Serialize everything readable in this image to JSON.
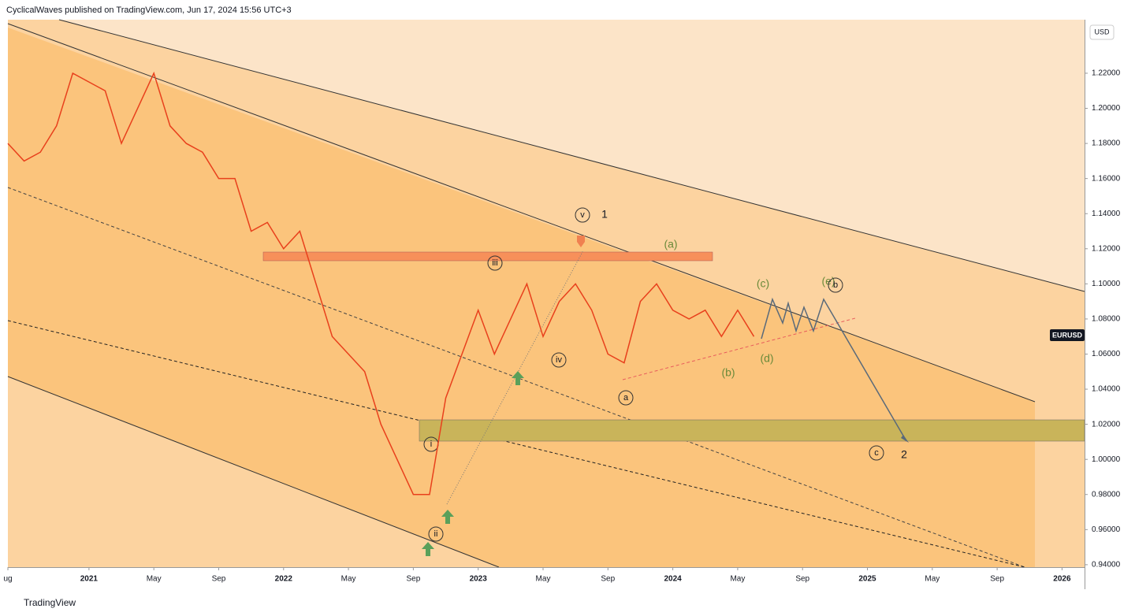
{
  "header": {
    "byline": "CyclicalWaves published on TradingView.com, Jun 17, 2024 15:56 UTC+3",
    "footer": "TradingView"
  },
  "chart_data": {
    "type": "line",
    "symbol": "EURUSD",
    "currency": "USD",
    "x": [
      "2020-08",
      "2020-09",
      "2020-10",
      "2020-11",
      "2020-12",
      "2021-01",
      "2021-02",
      "2021-03",
      "2021-04",
      "2021-05",
      "2021-06",
      "2021-07",
      "2021-08",
      "2021-09",
      "2021-10",
      "2021-11",
      "2021-12",
      "2022-01",
      "2022-02",
      "2022-03",
      "2022-04",
      "2022-05",
      "2022-06",
      "2022-07",
      "2022-08",
      "2022-09",
      "2022-10",
      "2022-11",
      "2022-12",
      "2023-01",
      "2023-02",
      "2023-03",
      "2023-04",
      "2023-05",
      "2023-06",
      "2023-07",
      "2023-08",
      "2023-09",
      "2023-10",
      "2023-11",
      "2023-12",
      "2024-01",
      "2024-02",
      "2024-03",
      "2024-04",
      "2024-05",
      "2024-06"
    ],
    "series": [
      {
        "name": "EURUSD",
        "color": "#e8401c",
        "values": [
          1.18,
          1.17,
          1.175,
          1.19,
          1.22,
          1.215,
          1.21,
          1.18,
          1.2,
          1.22,
          1.19,
          1.18,
          1.175,
          1.16,
          1.16,
          1.13,
          1.135,
          1.12,
          1.13,
          1.1,
          1.07,
          1.06,
          1.05,
          1.02,
          1.0,
          0.98,
          0.98,
          1.035,
          1.06,
          1.085,
          1.06,
          1.08,
          1.1,
          1.07,
          1.09,
          1.1,
          1.085,
          1.06,
          1.055,
          1.09,
          1.1,
          1.085,
          1.08,
          1.085,
          1.07,
          1.085,
          1.07
        ]
      }
    ],
    "xlim": [
      "2020-08",
      "2026-02"
    ],
    "xticks": [
      {
        "value": "2020-08",
        "label": "ug"
      },
      {
        "value": "2021-01",
        "label": "2021"
      },
      {
        "value": "2021-05",
        "label": "May"
      },
      {
        "value": "2021-09",
        "label": "Sep"
      },
      {
        "value": "2022-01",
        "label": "2022"
      },
      {
        "value": "2022-05",
        "label": "May"
      },
      {
        "value": "2022-09",
        "label": "Sep"
      },
      {
        "value": "2023-01",
        "label": "2023"
      },
      {
        "value": "2023-05",
        "label": "May"
      },
      {
        "value": "2023-09",
        "label": "Sep"
      },
      {
        "value": "2024-01",
        "label": "2024"
      },
      {
        "value": "2024-05",
        "label": "May"
      },
      {
        "value": "2024-09",
        "label": "Sep"
      },
      {
        "value": "2025-01",
        "label": "2025"
      },
      {
        "value": "2025-05",
        "label": "May"
      },
      {
        "value": "2025-09",
        "label": "Sep"
      },
      {
        "value": "2026-01",
        "label": "2026"
      }
    ],
    "ylim": [
      0.9386,
      1.2505
    ],
    "yticks": [
      {
        "value": 0.94,
        "label": "0.94000"
      },
      {
        "value": 0.96,
        "label": "0.96000"
      },
      {
        "value": 0.98,
        "label": "0.98000"
      },
      {
        "value": 1.0,
        "label": "1.00000"
      },
      {
        "value": 1.02,
        "label": "1.02000"
      },
      {
        "value": 1.04,
        "label": "1.04000"
      },
      {
        "value": 1.06,
        "label": "1.06000"
      },
      {
        "value": 1.08,
        "label": "1.08000"
      },
      {
        "value": 1.1,
        "label": "1.10000"
      },
      {
        "value": 1.12,
        "label": "1.12000"
      },
      {
        "value": 1.14,
        "label": "1.14000"
      },
      {
        "value": 1.16,
        "label": "1.16000"
      },
      {
        "value": 1.18,
        "label": "1.18000"
      },
      {
        "value": 1.2,
        "label": "1.20000"
      },
      {
        "value": 1.22,
        "label": "1.22000"
      }
    ],
    "annotations": [
      "v",
      "1",
      "iii",
      "(a)",
      "(c)",
      "(e)",
      "b",
      "(b)",
      "(d)",
      "iv",
      "a",
      "i",
      "ii",
      "c",
      "2"
    ]
  }
}
